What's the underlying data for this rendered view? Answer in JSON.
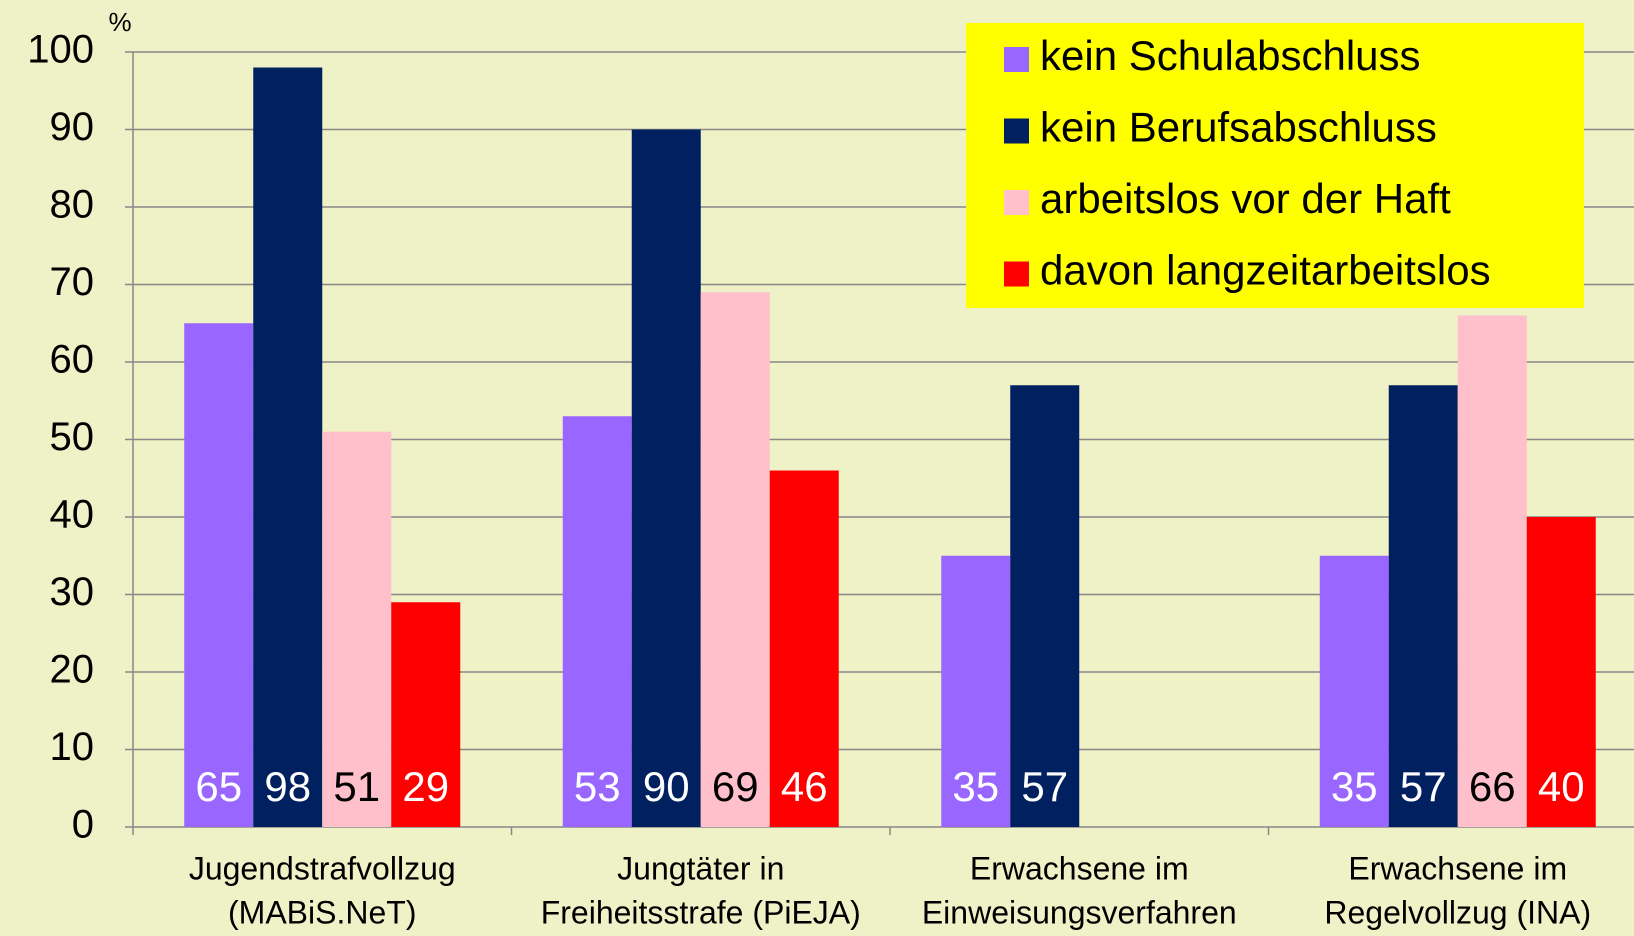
{
  "chart_data": {
    "type": "bar",
    "y_unit": "%",
    "categories": [
      [
        "Jugendstrafvollzug",
        "(MABiS.NeT)"
      ],
      [
        "Jungtäter in",
        "Freiheitsstrafe (PiEJA)"
      ],
      [
        "Erwachsene im",
        "Einweisungsverfahren"
      ],
      [
        "Erwachsene im",
        "Regelvollzug (INA)"
      ]
    ],
    "series": [
      {
        "name": "kein Schulabschluss",
        "color": "#9966ff",
        "label_color": "#ffffff",
        "values": [
          65,
          53,
          35,
          35
        ]
      },
      {
        "name": "kein Berufsabschluss",
        "color": "#002060",
        "label_color": "#ffffff",
        "values": [
          98,
          90,
          57,
          57
        ]
      },
      {
        "name": "arbeitslos vor der Haft",
        "color": "#ffc0cb",
        "label_color": "#000000",
        "values": [
          51,
          69,
          null,
          66
        ]
      },
      {
        "name": "davon langzeitarbeitslos",
        "color": "#ff0000",
        "label_color": "#ffffff",
        "values": [
          29,
          46,
          null,
          40
        ]
      }
    ],
    "ylim": [
      0,
      100
    ],
    "yticks": [
      0,
      10,
      20,
      30,
      40,
      50,
      60,
      70,
      80,
      90,
      100
    ],
    "grid": true,
    "legend": "upper right",
    "legend_background": "#ffff00"
  }
}
